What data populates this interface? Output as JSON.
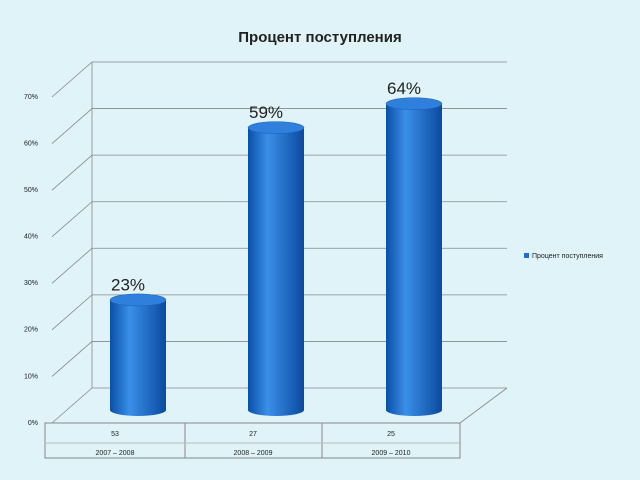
{
  "chart_data": {
    "type": "bar",
    "title": "Процент поступления",
    "categories": [
      "2007 – 2008",
      "2008 – 2009",
      "2009 – 2010"
    ],
    "series": [
      {
        "name": "Процент поступления",
        "color": "#1f6fd0",
        "values": [
          23,
          59,
          64
        ],
        "value_labels": [
          "23%",
          "59%",
          "64%"
        ]
      }
    ],
    "table_row": [
      "53",
      "27",
      "25"
    ],
    "ylim": [
      0,
      70
    ],
    "yticks": [
      {
        "value": 0,
        "label": "0%"
      },
      {
        "value": 10,
        "label": "10%"
      },
      {
        "value": 20,
        "label": "20%"
      },
      {
        "value": 30,
        "label": "30%"
      },
      {
        "value": 40,
        "label": "40%"
      },
      {
        "value": 50,
        "label": "50%"
      },
      {
        "value": 60,
        "label": "60%"
      },
      {
        "value": 70,
        "label": "70%"
      }
    ],
    "grid": true,
    "legend": "right"
  }
}
